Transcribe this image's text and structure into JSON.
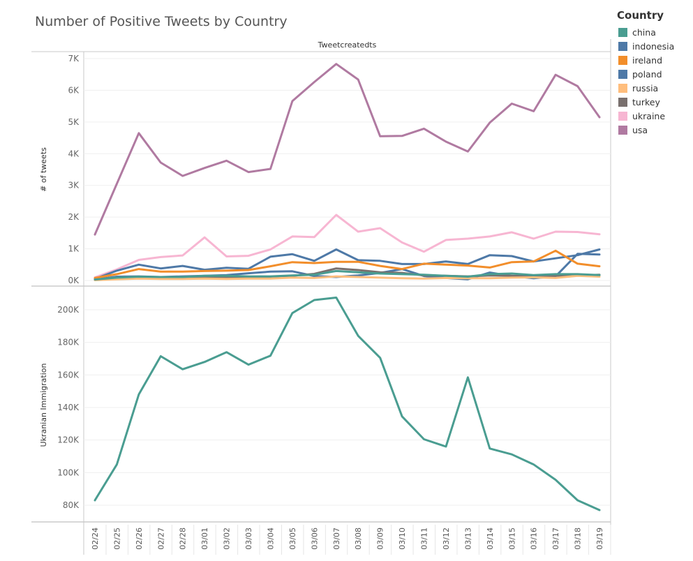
{
  "title": "Number of Positive Tweets by Country",
  "legend": {
    "title": "Country",
    "items": [
      {
        "label": "china",
        "color": "#4a9d91"
      },
      {
        "label": "indonesia",
        "color": "#4e79a7"
      },
      {
        "label": "ireland",
        "color": "#f28e2b"
      },
      {
        "label": "poland",
        "color": "#4e79a7"
      },
      {
        "label": "russia",
        "color": "#ffbe7d"
      },
      {
        "label": "turkey",
        "color": "#79706e"
      },
      {
        "label": "ukraine",
        "color": "#f7b6d2"
      },
      {
        "label": "usa",
        "color": "#b07aa1"
      }
    ]
  },
  "chart_data": [
    {
      "type": "line",
      "column_header": "Tweetcreatedts",
      "ylabel": "# of tweets",
      "ylim": [
        0,
        7000
      ],
      "y_ticks": [
        {
          "value": 0,
          "label": "0K"
        },
        {
          "value": 1000,
          "label": "1K"
        },
        {
          "value": 2000,
          "label": "2K"
        },
        {
          "value": 3000,
          "label": "3K"
        },
        {
          "value": 4000,
          "label": "4K"
        },
        {
          "value": 5000,
          "label": "5K"
        },
        {
          "value": 6000,
          "label": "6K"
        },
        {
          "value": 7000,
          "label": "7K"
        }
      ],
      "x": [
        "02/24",
        "02/25",
        "02/26",
        "02/27",
        "02/28",
        "03/01",
        "03/02",
        "03/03",
        "03/04",
        "03/05",
        "03/06",
        "03/07",
        "03/08",
        "03/09",
        "03/10",
        "03/11",
        "03/12",
        "03/13",
        "03/14",
        "03/15",
        "03/16",
        "03/17",
        "03/18",
        "03/19"
      ],
      "series": [
        {
          "name": "usa",
          "color": "#b07aa1",
          "values": [
            1450,
            3050,
            4650,
            3720,
            3300,
            3550,
            3780,
            3420,
            3520,
            5660,
            6260,
            6830,
            6340,
            4550,
            4560,
            4790,
            4380,
            4070,
            4980,
            5580,
            5340,
            6490,
            6130,
            5150
          ]
        },
        {
          "name": "ukraine",
          "color": "#f7b6d2",
          "values": [
            100,
            350,
            650,
            740,
            790,
            1360,
            760,
            780,
            980,
            1390,
            1370,
            2070,
            1540,
            1650,
            1200,
            910,
            1280,
            1320,
            1390,
            1520,
            1320,
            1540,
            1530,
            1460
          ]
        },
        {
          "name": "poland",
          "color": "#4e79a7",
          "values": [
            50,
            310,
            500,
            380,
            460,
            340,
            400,
            370,
            750,
            830,
            620,
            980,
            640,
            620,
            520,
            520,
            600,
            520,
            800,
            770,
            600,
            700,
            800,
            980
          ]
        },
        {
          "name": "indonesia",
          "color": "#4e79a7",
          "values": [
            30,
            120,
            130,
            110,
            130,
            150,
            170,
            230,
            280,
            290,
            140,
            110,
            160,
            240,
            360,
            140,
            80,
            40,
            250,
            140,
            70,
            130,
            840,
            820
          ]
        },
        {
          "name": "ireland",
          "color": "#f28e2b",
          "values": [
            80,
            200,
            360,
            280,
            280,
            300,
            310,
            330,
            450,
            580,
            550,
            590,
            590,
            460,
            360,
            530,
            500,
            470,
            410,
            580,
            600,
            940,
            530,
            450
          ]
        },
        {
          "name": "turkey",
          "color": "#79706e",
          "values": [
            20,
            70,
            110,
            80,
            90,
            110,
            110,
            110,
            120,
            150,
            210,
            380,
            330,
            260,
            240,
            160,
            150,
            130,
            160,
            150,
            140,
            150,
            160,
            180
          ]
        },
        {
          "name": "russia",
          "color": "#ffbe7d",
          "values": [
            10,
            40,
            60,
            50,
            50,
            60,
            50,
            60,
            60,
            90,
            80,
            130,
            110,
            90,
            70,
            60,
            80,
            70,
            70,
            90,
            100,
            80,
            150,
            120
          ]
        },
        {
          "name": "china",
          "color": "#4a9d91",
          "values": [
            30,
            90,
            120,
            110,
            110,
            150,
            150,
            130,
            130,
            160,
            180,
            300,
            260,
            220,
            200,
            180,
            150,
            120,
            200,
            220,
            170,
            200,
            200,
            170
          ]
        }
      ]
    },
    {
      "type": "line",
      "ylabel": "Ukranian Immigration",
      "ylim": [
        75000,
        210000
      ],
      "y_ticks": [
        {
          "value": 80000,
          "label": "80K"
        },
        {
          "value": 100000,
          "label": "100K"
        },
        {
          "value": 120000,
          "label": "120K"
        },
        {
          "value": 140000,
          "label": "140K"
        },
        {
          "value": 160000,
          "label": "160K"
        },
        {
          "value": 180000,
          "label": "180K"
        },
        {
          "value": 200000,
          "label": "200K"
        }
      ],
      "x": [
        "02/24",
        "02/25",
        "02/26",
        "02/27",
        "02/28",
        "03/01",
        "03/02",
        "03/03",
        "03/04",
        "03/05",
        "03/06",
        "03/07",
        "03/08",
        "03/09",
        "03/10",
        "03/11",
        "03/12",
        "03/13",
        "03/14",
        "03/15",
        "03/16",
        "03/17",
        "03/18",
        "03/19"
      ],
      "series": [
        {
          "color": "#4a9d91",
          "values": [
            83000,
            105000,
            148000,
            171500,
            163500,
            168000,
            174000,
            166300,
            171800,
            198000,
            206000,
            207500,
            184000,
            170500,
            134500,
            120500,
            116000,
            158500,
            114800,
            111200,
            105000,
            95600,
            83000,
            77000
          ]
        }
      ]
    }
  ]
}
